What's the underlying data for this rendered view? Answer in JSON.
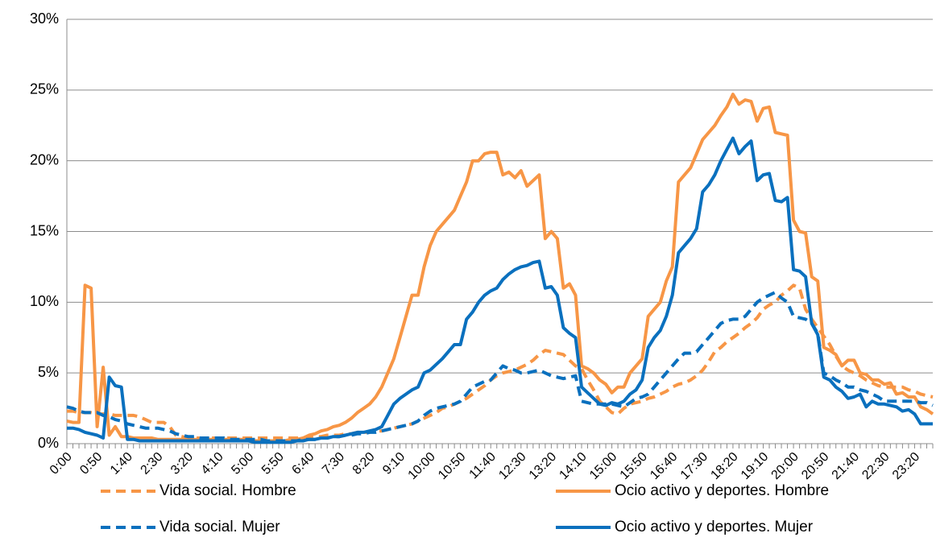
{
  "chart_data": {
    "type": "line",
    "categories": [
      "0:00",
      null,
      null,
      null,
      null,
      "0:50",
      null,
      null,
      null,
      null,
      "1:40",
      null,
      null,
      null,
      null,
      "2:30",
      null,
      null,
      null,
      null,
      "3:20",
      null,
      null,
      null,
      null,
      "4:10",
      null,
      null,
      null,
      null,
      "5:00",
      null,
      null,
      null,
      null,
      "5:50",
      null,
      null,
      null,
      null,
      "6:40",
      null,
      null,
      null,
      null,
      "7:30",
      null,
      null,
      null,
      null,
      "8:20",
      null,
      null,
      null,
      null,
      "9:10",
      null,
      null,
      null,
      null,
      "10:00",
      null,
      null,
      null,
      null,
      "10:50",
      null,
      null,
      null,
      null,
      "11:40",
      null,
      null,
      null,
      null,
      "12:30",
      null,
      null,
      null,
      null,
      "13:20",
      null,
      null,
      null,
      null,
      "14:10",
      null,
      null,
      null,
      null,
      "15:00",
      null,
      null,
      null,
      null,
      "15:50",
      null,
      null,
      null,
      null,
      "16:40",
      null,
      null,
      null,
      null,
      "17:30",
      null,
      null,
      null,
      null,
      "18:20",
      null,
      null,
      null,
      null,
      "19:10",
      null,
      null,
      null,
      null,
      "20:00",
      null,
      null,
      null,
      null,
      "20:50",
      null,
      null,
      null,
      null,
      "21:40",
      null,
      null,
      null,
      null,
      "22:30",
      null,
      null,
      null,
      null,
      "23:20",
      null,
      null,
      null
    ],
    "series": [
      {
        "name": "Vida social. Hombre",
        "color": "#F79646",
        "dashed": true,
        "values": [
          2.3,
          2.3,
          2.2,
          2.2,
          2.2,
          2.1,
          2.1,
          2.1,
          2.0,
          2.0,
          2.0,
          2.0,
          1.9,
          1.7,
          1.5,
          1.5,
          1.5,
          1.2,
          0.6,
          0.5,
          0.4,
          0.4,
          0.4,
          0.4,
          0.4,
          0.4,
          0.4,
          0.4,
          0.4,
          0.4,
          0.4,
          0.4,
          0.4,
          0.4,
          0.4,
          0.4,
          0.4,
          0.4,
          0.4,
          0.4,
          0.5,
          0.5,
          0.5,
          0.6,
          0.6,
          0.6,
          0.7,
          0.7,
          0.8,
          0.8,
          0.8,
          0.9,
          0.9,
          1.0,
          1.1,
          1.2,
          1.3,
          1.4,
          1.6,
          1.8,
          2.0,
          2.2,
          2.5,
          2.6,
          2.8,
          3.0,
          3.2,
          3.5,
          3.8,
          4.1,
          4.5,
          4.8,
          5.0,
          5.1,
          5.2,
          5.4,
          5.6,
          5.9,
          6.3,
          6.6,
          6.5,
          6.4,
          6.3,
          5.9,
          5.5,
          5.3,
          4.5,
          3.8,
          3.0,
          2.6,
          2.2,
          2.1,
          2.5,
          2.8,
          2.9,
          3.0,
          3.2,
          3.3,
          3.5,
          3.7,
          4.0,
          4.2,
          4.3,
          4.5,
          4.8,
          5.2,
          5.8,
          6.5,
          6.8,
          7.2,
          7.5,
          7.8,
          8.2,
          8.5,
          8.9,
          9.5,
          9.8,
          10.0,
          10.5,
          10.8,
          11.2,
          11.0,
          9.5,
          8.8,
          8.2,
          7.6,
          7.0,
          6.2,
          5.5,
          5.2,
          5.0,
          4.8,
          4.5,
          4.3,
          4.1,
          4.0,
          4.0,
          4.0,
          4.0,
          3.8,
          3.7,
          3.5,
          3.4,
          3.3
        ]
      },
      {
        "name": "Ocio activo y deportes. Hombre",
        "color": "#F79646",
        "dashed": false,
        "values": [
          1.6,
          1.5,
          1.5,
          11.2,
          11.0,
          1.2,
          5.4,
          0.6,
          1.2,
          0.5,
          0.5,
          0.4,
          0.4,
          0.4,
          0.4,
          0.3,
          0.3,
          0.3,
          0.3,
          0.3,
          0.3,
          0.3,
          0.3,
          0.3,
          0.3,
          0.3,
          0.3,
          0.3,
          0.3,
          0.3,
          0.2,
          0.2,
          0.2,
          0.2,
          0.2,
          0.2,
          0.2,
          0.3,
          0.3,
          0.4,
          0.6,
          0.7,
          0.9,
          1.0,
          1.2,
          1.3,
          1.5,
          1.8,
          2.2,
          2.5,
          2.8,
          3.3,
          4.0,
          5.0,
          6.0,
          7.5,
          9.0,
          10.5,
          10.5,
          12.5,
          14.0,
          15.0,
          15.5,
          16.0,
          16.5,
          17.5,
          18.5,
          20.0,
          20.0,
          20.5,
          20.6,
          20.6,
          19.0,
          19.2,
          18.8,
          19.3,
          18.2,
          18.6,
          19.0,
          14.5,
          15.0,
          14.5,
          11.0,
          11.3,
          10.5,
          5.5,
          5.3,
          5.0,
          4.5,
          4.2,
          3.6,
          4.0,
          4.0,
          5.0,
          5.5,
          6.0,
          9.0,
          9.5,
          10.0,
          11.5,
          12.5,
          18.5,
          19.0,
          19.5,
          20.5,
          21.5,
          22.0,
          22.5,
          23.2,
          23.8,
          24.7,
          24.0,
          24.3,
          24.2,
          22.8,
          23.7,
          23.8,
          22.0,
          21.9,
          21.8,
          15.8,
          15.0,
          14.9,
          11.8,
          11.5,
          6.8,
          6.6,
          6.3,
          5.5,
          5.9,
          5.9,
          5.0,
          4.9,
          4.5,
          4.5,
          4.2,
          4.3,
          3.5,
          3.6,
          3.3,
          3.3,
          2.6,
          2.4,
          2.1
        ]
      },
      {
        "name": "Vida social. Mujer",
        "color": "#0A70BE",
        "dashed": true,
        "values": [
          2.6,
          2.5,
          2.3,
          2.2,
          2.2,
          2.2,
          2.0,
          1.9,
          1.7,
          1.6,
          1.4,
          1.3,
          1.2,
          1.1,
          1.1,
          1.1,
          1.0,
          0.9,
          0.7,
          0.6,
          0.5,
          0.5,
          0.4,
          0.4,
          0.4,
          0.4,
          0.4,
          0.3,
          0.3,
          0.3,
          0.3,
          0.3,
          0.3,
          0.2,
          0.2,
          0.2,
          0.2,
          0.2,
          0.2,
          0.3,
          0.3,
          0.3,
          0.4,
          0.4,
          0.5,
          0.5,
          0.6,
          0.6,
          0.7,
          0.7,
          0.8,
          0.8,
          0.9,
          1.0,
          1.1,
          1.2,
          1.3,
          1.4,
          1.6,
          2.0,
          2.3,
          2.5,
          2.6,
          2.7,
          2.8,
          3.0,
          3.5,
          4.0,
          4.2,
          4.4,
          4.5,
          5.0,
          5.5,
          5.3,
          5.2,
          5.0,
          5.0,
          5.1,
          5.2,
          5.0,
          4.8,
          4.7,
          4.6,
          4.7,
          4.8,
          3.0,
          2.9,
          2.8,
          2.8,
          2.8,
          2.8,
          2.7,
          2.6,
          2.9,
          3.2,
          3.3,
          3.5,
          4.0,
          4.5,
          5.0,
          5.5,
          6.0,
          6.4,
          6.4,
          6.5,
          7.0,
          7.5,
          8.0,
          8.5,
          8.7,
          8.8,
          8.8,
          9.0,
          9.5,
          10.0,
          10.3,
          10.5,
          10.7,
          10.3,
          10.0,
          9.0,
          8.9,
          8.8,
          8.5,
          7.8,
          5.0,
          4.8,
          4.5,
          4.3,
          4.0,
          4.0,
          3.8,
          3.7,
          3.5,
          3.3,
          3.0,
          3.0,
          3.0,
          3.0,
          3.0,
          3.0,
          2.9,
          2.9,
          2.7
        ]
      },
      {
        "name": "Ocio activo y deportes. Mujer",
        "color": "#0A70BE",
        "dashed": false,
        "values": [
          1.1,
          1.1,
          1.0,
          0.8,
          0.7,
          0.6,
          0.4,
          4.7,
          4.1,
          4.0,
          0.3,
          0.3,
          0.2,
          0.2,
          0.2,
          0.2,
          0.2,
          0.2,
          0.2,
          0.2,
          0.2,
          0.2,
          0.2,
          0.2,
          0.2,
          0.2,
          0.2,
          0.2,
          0.2,
          0.2,
          0.2,
          0.1,
          0.1,
          0.1,
          0.1,
          0.1,
          0.1,
          0.1,
          0.2,
          0.2,
          0.3,
          0.3,
          0.4,
          0.4,
          0.5,
          0.5,
          0.6,
          0.7,
          0.8,
          0.8,
          0.9,
          1.0,
          1.2,
          2.0,
          2.8,
          3.2,
          3.5,
          3.8,
          4.0,
          5.0,
          5.2,
          5.6,
          6.0,
          6.5,
          7.0,
          7.0,
          8.8,
          9.3,
          10.0,
          10.5,
          10.8,
          11.0,
          11.6,
          12.0,
          12.3,
          12.5,
          12.6,
          12.8,
          12.9,
          11.0,
          11.1,
          10.5,
          8.2,
          7.8,
          7.5,
          4.0,
          3.6,
          3.2,
          2.8,
          2.7,
          2.9,
          2.8,
          3.0,
          3.5,
          3.8,
          4.5,
          6.8,
          7.5,
          8.0,
          9.0,
          10.5,
          13.5,
          14.0,
          14.5,
          15.2,
          17.8,
          18.3,
          19.0,
          20.0,
          20.8,
          21.6,
          20.5,
          21.0,
          21.4,
          18.6,
          19.0,
          19.1,
          17.2,
          17.1,
          17.4,
          12.3,
          12.2,
          11.8,
          8.5,
          7.7,
          4.7,
          4.5,
          4.0,
          3.7,
          3.2,
          3.3,
          3.5,
          2.6,
          3.0,
          2.8,
          2.8,
          2.7,
          2.6,
          2.3,
          2.4,
          2.1,
          1.4,
          1.4,
          1.4
        ]
      }
    ],
    "ylim": [
      0,
      30
    ],
    "yticks": [
      {
        "value": 0,
        "label": "0%"
      },
      {
        "value": 5,
        "label": "5%"
      },
      {
        "value": 10,
        "label": "10%"
      },
      {
        "value": 15,
        "label": "15%"
      },
      {
        "value": 20,
        "label": "20%"
      },
      {
        "value": 25,
        "label": "25%"
      },
      {
        "value": 30,
        "label": "30%"
      }
    ],
    "grid": true
  }
}
